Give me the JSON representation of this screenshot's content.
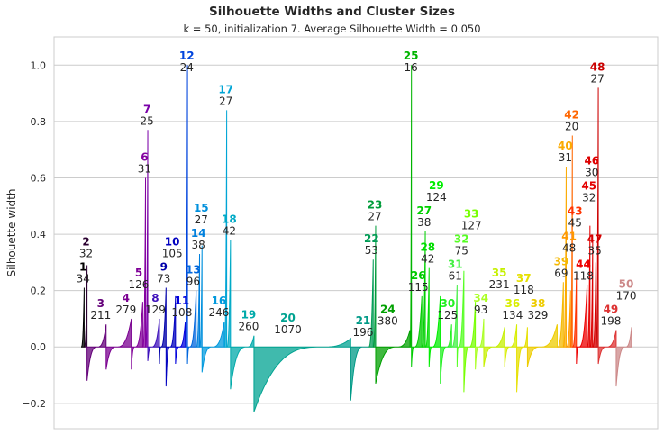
{
  "chart_data": {
    "type": "area",
    "title": "Silhouette Widths and Cluster Sizes",
    "subtitle": "k = 50, initialization 7. Average Silhouette Width = 0.050",
    "xlabel": "",
    "ylabel": "Silhouette width",
    "ylim": [
      -0.29,
      1.1
    ],
    "yticks": [
      -0.2,
      0.0,
      0.2,
      0.4,
      0.6,
      0.8,
      1.0
    ],
    "ytick_labels": [
      "−0.2",
      "0.0",
      "0.2",
      "0.4",
      "0.6",
      "0.8",
      "1.0"
    ],
    "grid": true,
    "clusters": [
      {
        "id": "1",
        "size": 34,
        "max": 0.21,
        "min": 0.0,
        "color": "#000000"
      },
      {
        "id": "2",
        "size": 32,
        "max": 0.29,
        "min": 0.0,
        "color": "#2a0030"
      },
      {
        "id": "3",
        "size": 211,
        "max": 0.08,
        "min": -0.12,
        "color": "#640079"
      },
      {
        "id": "4",
        "size": 279,
        "max": 0.1,
        "min": -0.08,
        "color": "#7a0090"
      },
      {
        "id": "5",
        "size": 126,
        "max": 0.16,
        "min": -0.08,
        "color": "#800098"
      },
      {
        "id": "6",
        "size": 31,
        "max": 0.6,
        "min": 0.0,
        "color": "#8400a0"
      },
      {
        "id": "7",
        "size": 25,
        "max": 0.77,
        "min": 0.0,
        "color": "#7a00a8"
      },
      {
        "id": "8",
        "size": 129,
        "max": 0.1,
        "min": -0.05,
        "color": "#3c0fbb"
      },
      {
        "id": "9",
        "size": 73,
        "max": 0.21,
        "min": -0.06,
        "color": "#0000aa"
      },
      {
        "id": "10",
        "size": 105,
        "max": 0.18,
        "min": -0.14,
        "color": "#0000c0"
      },
      {
        "id": "11",
        "size": 108,
        "max": 0.09,
        "min": -0.06,
        "color": "#0000dd"
      },
      {
        "id": "12",
        "size": 24,
        "max": 1.0,
        "min": 0.0,
        "color": "#0044dd"
      },
      {
        "id": "13",
        "size": 96,
        "max": 0.2,
        "min": -0.06,
        "color": "#0066dd"
      },
      {
        "id": "14",
        "size": 38,
        "max": 0.33,
        "min": 0.0,
        "color": "#0080dd"
      },
      {
        "id": "15",
        "size": 27,
        "max": 0.36,
        "min": 0.0,
        "color": "#0090dd"
      },
      {
        "id": "16",
        "size": 246,
        "max": 0.09,
        "min": -0.09,
        "color": "#0099dd"
      },
      {
        "id": "17",
        "size": 27,
        "max": 0.84,
        "min": 0.0,
        "color": "#00a5d5"
      },
      {
        "id": "18",
        "size": 42,
        "max": 0.38,
        "min": 0.0,
        "color": "#00aac6"
      },
      {
        "id": "19",
        "size": 260,
        "max": 0.04,
        "min": -0.15,
        "color": "#00aaaa"
      },
      {
        "id": "20",
        "size": 1070,
        "max": 0.03,
        "min": -0.23,
        "color": "#00a391"
      },
      {
        "id": "21",
        "size": 196,
        "max": 0.0,
        "min": -0.19,
        "color": "#009a87"
      },
      {
        "id": "22",
        "size": 53,
        "max": 0.31,
        "min": 0.0,
        "color": "#009c55"
      },
      {
        "id": "23",
        "size": 27,
        "max": 0.43,
        "min": 0.0,
        "color": "#009c3a"
      },
      {
        "id": "24",
        "size": 380,
        "max": 0.06,
        "min": -0.13,
        "color": "#00a000"
      },
      {
        "id": "25",
        "size": 16,
        "max": 1.0,
        "min": 0.0,
        "color": "#00b400"
      },
      {
        "id": "26",
        "size": 115,
        "max": 0.18,
        "min": -0.07,
        "color": "#00cc00"
      },
      {
        "id": "27",
        "size": 38,
        "max": 0.41,
        "min": 0.0,
        "color": "#00d000"
      },
      {
        "id": "28",
        "size": 42,
        "max": 0.28,
        "min": 0.0,
        "color": "#00dd00"
      },
      {
        "id": "29",
        "size": 124,
        "max": 0.18,
        "min": -0.07,
        "color": "#00ee00"
      },
      {
        "id": "30",
        "size": 125,
        "max": 0.08,
        "min": -0.13,
        "color": "#22f022"
      },
      {
        "id": "31",
        "size": 61,
        "max": 0.22,
        "min": 0.0,
        "color": "#44f044"
      },
      {
        "id": "32",
        "size": 75,
        "max": 0.27,
        "min": -0.07,
        "color": "#55ff22"
      },
      {
        "id": "33",
        "size": 127,
        "max": 0.16,
        "min": -0.16,
        "color": "#77ff00"
      },
      {
        "id": "34",
        "size": 93,
        "max": 0.1,
        "min": -0.08,
        "color": "#aaff22"
      },
      {
        "id": "35",
        "size": 231,
        "max": 0.07,
        "min": -0.07,
        "color": "#c6f000"
      },
      {
        "id": "36",
        "size": 134,
        "max": 0.08,
        "min": -0.07,
        "color": "#d8ee00"
      },
      {
        "id": "37",
        "size": 118,
        "max": 0.07,
        "min": -0.16,
        "color": "#e6e000"
      },
      {
        "id": "38",
        "size": 329,
        "max": 0.08,
        "min": -0.07,
        "color": "#eecc00"
      },
      {
        "id": "39",
        "size": 69,
        "max": 0.23,
        "min": 0.0,
        "color": "#f5b800"
      },
      {
        "id": "40",
        "size": 31,
        "max": 0.64,
        "min": 0.0,
        "color": "#fbaa00"
      },
      {
        "id": "41",
        "size": 48,
        "max": 0.2,
        "min": 0.0,
        "color": "#ff9900"
      },
      {
        "id": "42",
        "size": 20,
        "max": 0.75,
        "min": 0.0,
        "color": "#ff6600"
      },
      {
        "id": "43",
        "size": 45,
        "max": 0.26,
        "min": 0.0,
        "color": "#ff3300"
      },
      {
        "id": "44",
        "size": 118,
        "max": 0.22,
        "min": -0.06,
        "color": "#ee0000"
      },
      {
        "id": "45",
        "size": 32,
        "max": 0.43,
        "min": 0.0,
        "color": "#e40000"
      },
      {
        "id": "46",
        "size": 30,
        "max": 0.38,
        "min": 0.0,
        "color": "#dd0000"
      },
      {
        "id": "47",
        "size": 35,
        "max": 0.3,
        "min": 0.0,
        "color": "#d60000"
      },
      {
        "id": "48",
        "size": 27,
        "max": 0.92,
        "min": 0.0,
        "color": "#cc0000"
      },
      {
        "id": "49",
        "size": 198,
        "max": 0.06,
        "min": -0.06,
        "color": "#dd3333"
      },
      {
        "id": "50",
        "size": 170,
        "max": 0.07,
        "min": -0.14,
        "color": "#cc8888"
      }
    ]
  }
}
